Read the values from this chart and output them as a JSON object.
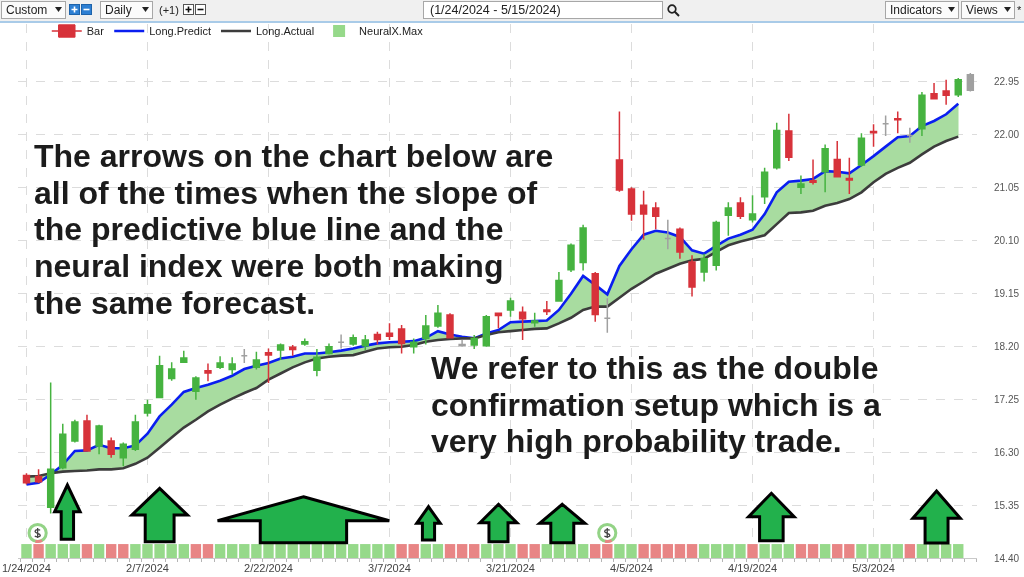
{
  "chart_data": {
    "type": "candlestick",
    "title": "(1/24/2024 - 5/15/2024)",
    "annotations": [
      "Custom",
      "Daily",
      "(+1)",
      "Indicators",
      "Views",
      "*",
      "The arrows on the chart below are all of the times when the slope of the predictive blue line and the neural index were both making the same forecast.",
      "We refer to this as the double confirmation setup which is a very high probability trade."
    ],
    "categories": [
      "1/24/2024",
      null,
      null,
      null,
      null,
      null,
      null,
      null,
      null,
      null,
      "2/7/2024",
      null,
      null,
      null,
      null,
      null,
      null,
      null,
      null,
      null,
      "2/22/2024",
      null,
      null,
      null,
      null,
      null,
      null,
      null,
      null,
      null,
      "3/7/2024",
      null,
      null,
      null,
      null,
      null,
      null,
      null,
      null,
      null,
      "3/21/2024",
      null,
      null,
      null,
      null,
      null,
      null,
      null,
      null,
      null,
      "4/5/2024",
      null,
      null,
      null,
      null,
      null,
      null,
      null,
      null,
      null,
      "4/19/2024",
      null,
      null,
      null,
      null,
      null,
      null,
      null,
      null,
      null,
      "5/3/2024",
      null,
      null,
      null,
      null,
      null,
      null,
      null,
      null
    ],
    "series": [
      {
        "name": "Bar",
        "ohlc": [
          [
            15.88,
            15.92,
            15.72,
            15.75
          ],
          [
            15.86,
            15.99,
            15.74,
            15.77
          ],
          [
            15.31,
            17.55,
            15.2,
            15.99
          ],
          [
            16.02,
            16.81,
            15.99,
            16.62
          ],
          [
            16.5,
            16.88,
            16.47,
            16.84
          ],
          [
            16.86,
            16.97,
            16.31,
            16.32
          ],
          [
            16.41,
            16.79,
            16.26,
            16.77
          ],
          [
            16.5,
            16.56,
            16.2,
            16.26
          ],
          [
            16.2,
            16.47,
            16.05,
            16.44
          ],
          [
            16.35,
            16.97,
            16.32,
            16.84
          ],
          [
            17.0,
            17.24,
            16.94,
            17.15
          ],
          [
            17.28,
            18.03,
            17.27,
            17.85
          ],
          [
            17.62,
            17.91,
            17.58,
            17.79
          ],
          [
            17.91,
            18.12,
            17.9,
            17.99
          ],
          [
            17.39,
            17.66,
            17.24,
            17.63
          ],
          [
            17.76,
            17.89,
            17.57,
            17.72
          ],
          [
            17.82,
            18.02,
            17.79,
            17.9
          ],
          [
            17.78,
            18.0,
            17.69,
            17.88
          ],
          [
            18.03,
            18.15,
            17.9,
            18.03
          ],
          [
            17.82,
            18.1,
            17.78,
            17.95
          ],
          [
            18.08,
            18.16,
            17.54,
            18.04
          ],
          [
            18.13,
            18.25,
            17.95,
            18.22
          ],
          [
            18.18,
            18.22,
            18.03,
            18.14
          ],
          [
            18.24,
            18.34,
            18.21,
            18.28
          ],
          [
            17.77,
            18.15,
            17.66,
            18.0
          ],
          [
            18.07,
            18.25,
            18.05,
            18.19
          ],
          [
            18.27,
            18.41,
            18.16,
            18.27
          ],
          [
            18.24,
            18.41,
            18.21,
            18.35
          ],
          [
            18.21,
            18.4,
            18.13,
            18.31
          ],
          [
            18.41,
            18.46,
            18.23,
            18.32
          ],
          [
            18.43,
            18.61,
            18.31,
            18.38
          ],
          [
            18.51,
            18.58,
            18.07,
            18.25
          ],
          [
            18.19,
            18.34,
            18.07,
            18.27
          ],
          [
            18.34,
            18.76,
            18.23,
            18.56
          ],
          [
            18.56,
            18.94,
            18.53,
            18.79
          ],
          [
            18.76,
            18.79,
            18.34,
            18.35
          ],
          [
            18.21,
            18.31,
            18.19,
            18.23
          ],
          [
            18.22,
            18.4,
            18.15,
            18.34
          ],
          [
            18.21,
            18.76,
            18.19,
            18.73
          ],
          [
            18.79,
            18.8,
            18.52,
            18.75
          ],
          [
            18.85,
            19.07,
            18.73,
            19.01
          ],
          [
            18.81,
            18.91,
            18.31,
            18.69
          ],
          [
            18.62,
            18.8,
            18.55,
            18.65
          ],
          [
            18.85,
            19.01,
            18.76,
            18.82
          ],
          [
            19.01,
            19.53,
            19.0,
            19.38
          ],
          [
            19.57,
            20.04,
            19.53,
            20.01
          ],
          [
            19.7,
            20.38,
            19.56,
            20.32
          ],
          [
            19.5,
            19.53,
            18.64,
            18.77
          ],
          [
            18.7,
            19.06,
            18.44,
            18.7
          ],
          [
            21.54,
            22.41,
            20.97,
            21.0
          ],
          [
            21.02,
            21.05,
            20.45,
            20.57
          ],
          [
            20.73,
            20.99,
            20.11,
            20.57
          ],
          [
            20.68,
            20.78,
            20.3,
            20.53
          ],
          [
            20.13,
            20.47,
            19.94,
            20.13
          ],
          [
            20.3,
            20.33,
            19.77,
            19.89
          ],
          [
            19.71,
            19.83,
            19.09,
            19.26
          ],
          [
            19.53,
            19.86,
            19.36,
            19.77
          ],
          [
            19.65,
            20.45,
            19.56,
            20.42
          ],
          [
            20.55,
            20.78,
            20.18,
            20.68
          ],
          [
            20.77,
            20.87,
            20.48,
            20.53
          ],
          [
            20.47,
            20.91,
            20.42,
            20.57
          ],
          [
            20.88,
            21.4,
            20.75,
            21.32
          ],
          [
            21.4,
            22.21,
            21.37,
            22.07
          ],
          [
            22.06,
            22.37,
            21.52,
            21.59
          ],
          [
            21.05,
            21.26,
            20.93,
            21.11
          ],
          [
            21.17,
            21.55,
            21.1,
            21.14
          ],
          [
            21.33,
            21.82,
            20.96,
            21.74
          ],
          [
            21.55,
            21.88,
            21.23,
            21.24
          ],
          [
            21.21,
            21.58,
            20.93,
            21.18
          ],
          [
            21.45,
            22.02,
            21.42,
            21.93
          ],
          [
            22.05,
            22.18,
            21.78,
            22.03
          ],
          [
            22.19,
            22.34,
            21.97,
            22.19
          ],
          [
            22.28,
            22.41,
            22.02,
            22.26
          ],
          [
            21.98,
            22.12,
            21.85,
            21.98
          ],
          [
            22.1,
            22.76,
            21.97,
            22.7
          ],
          [
            22.73,
            22.92,
            22.63,
            22.64
          ],
          [
            22.78,
            22.98,
            22.53,
            22.7
          ],
          [
            22.71,
            23.01,
            22.67,
            22.98
          ],
          [
            22.79,
            23.1,
            22.77,
            23.07
          ]
        ],
        "colors": [
          "#d7323a",
          "#d7323a",
          "#46b340",
          "#46b340",
          "#46b340",
          "#d7323a",
          "#46b340",
          "#d7323a",
          "#46b340",
          "#46b340",
          "#46b340",
          "#46b340",
          "#46b340",
          "#46b340",
          "#46b340",
          "#d7323a",
          "#46b340",
          "#46b340",
          "#a0a0a0",
          "#46b340",
          "#d7323a",
          "#46b340",
          "#d7323a",
          "#46b340",
          "#46b340",
          "#46b340",
          "#a0a0a0",
          "#46b340",
          "#46b340",
          "#d7323a",
          "#d7323a",
          "#d7323a",
          "#46b340",
          "#46b340",
          "#46b340",
          "#d7323a",
          "#a0a0a0",
          "#46b340",
          "#46b340",
          "#d7323a",
          "#46b340",
          "#d7323a",
          "#46b340",
          "#d7323a",
          "#46b340",
          "#46b340",
          "#46b340",
          "#d7323a",
          "#a0a0a0",
          "#d7323a",
          "#d7323a",
          "#d7323a",
          "#d7323a",
          "#a0a0a0",
          "#d7323a",
          "#d7323a",
          "#46b340",
          "#46b340",
          "#46b340",
          "#d7323a",
          "#46b340",
          "#46b340",
          "#46b340",
          "#d7323a",
          "#46b340",
          "#d7323a",
          "#46b340",
          "#d7323a",
          "#d7323a",
          "#46b340",
          "#d7323a",
          "#a0a0a0",
          "#d7323a",
          "#a0a0a0",
          "#46b340",
          "#d7323a",
          "#d7323a",
          "#46b340",
          "#a0a0a0"
        ]
      },
      {
        "type": "line",
        "name": "Long.Predict",
        "color": "#0a1ef0",
        "values": [
          15.72,
          15.75,
          15.9,
          16.07,
          16.32,
          16.33,
          16.43,
          16.37,
          16.37,
          16.42,
          16.63,
          16.94,
          17.15,
          17.38,
          17.45,
          17.51,
          17.58,
          17.67,
          17.79,
          17.85,
          17.9,
          17.98,
          18.01,
          18.07,
          18.07,
          18.09,
          18.12,
          18.16,
          18.21,
          18.25,
          18.27,
          18.28,
          18.29,
          18.35,
          18.47,
          18.41,
          18.37,
          18.34,
          18.43,
          18.49,
          18.63,
          18.64,
          18.65,
          18.66,
          18.85,
          19.14,
          19.46,
          19.3,
          19.13,
          19.64,
          19.94,
          20.2,
          20.27,
          20.24,
          20.16,
          19.92,
          19.86,
          20.0,
          20.13,
          20.2,
          20.29,
          20.57,
          20.96,
          21.15,
          21.17,
          21.2,
          21.34,
          21.33,
          21.3,
          21.45,
          21.61,
          21.78,
          21.95,
          21.97,
          22.15,
          22.24,
          22.36,
          22.55,
          null
        ],
        "lower": [
          15.86,
          15.87,
          15.92,
          15.95,
          15.96,
          15.97,
          15.99,
          15.99,
          16.01,
          16.09,
          16.2,
          16.38,
          16.56,
          16.74,
          16.88,
          17.03,
          17.15,
          17.26,
          17.36,
          17.45,
          17.6,
          17.71,
          17.82,
          17.91,
          17.98,
          18.01,
          18.03,
          18.04,
          18.1,
          18.16,
          18.18,
          18.19,
          18.22,
          18.28,
          18.31,
          18.33,
          18.34,
          18.34,
          18.4,
          18.45,
          18.47,
          18.49,
          18.51,
          18.52,
          18.61,
          18.71,
          18.85,
          18.91,
          18.91,
          19.07,
          19.23,
          19.36,
          19.5,
          19.59,
          19.68,
          19.74,
          19.77,
          19.89,
          20.01,
          20.08,
          20.13,
          20.19,
          20.39,
          20.59,
          20.6,
          20.63,
          20.72,
          20.77,
          20.84,
          20.96,
          21.14,
          21.29,
          21.4,
          21.49,
          21.64,
          21.78,
          21.88,
          21.96,
          null
        ],
        "upper": [
          15.72,
          15.75,
          15.9,
          16.07,
          16.32,
          16.33,
          16.43,
          16.37,
          16.37,
          16.42,
          16.63,
          16.94,
          17.15,
          17.38,
          17.45,
          17.51,
          17.58,
          17.67,
          17.79,
          17.85,
          17.9,
          17.98,
          18.01,
          18.07,
          18.07,
          18.09,
          18.12,
          18.16,
          18.21,
          18.25,
          18.27,
          18.28,
          18.29,
          18.35,
          18.47,
          18.41,
          18.37,
          18.34,
          18.43,
          18.49,
          18.63,
          18.64,
          18.65,
          18.66,
          18.85,
          19.14,
          19.46,
          19.3,
          19.13,
          19.64,
          19.94,
          20.2,
          20.27,
          20.24,
          20.16,
          19.92,
          19.86,
          20.0,
          20.13,
          20.2,
          20.29,
          20.57,
          20.96,
          21.15,
          21.17,
          21.2,
          21.34,
          21.33,
          21.3,
          21.45,
          21.61,
          21.78,
          21.95,
          21.97,
          22.15,
          22.24,
          22.36,
          22.55,
          null
        ]
      },
      {
        "type": "line",
        "name": "Long.Actual",
        "color": "#3c3c3c",
        "values": [
          15.86,
          15.87,
          15.92,
          15.95,
          15.96,
          15.97,
          15.99,
          15.99,
          16.01,
          16.09,
          16.2,
          16.38,
          16.56,
          16.74,
          16.88,
          17.03,
          17.15,
          17.26,
          17.36,
          17.45,
          17.6,
          17.71,
          17.82,
          17.91,
          17.98,
          18.01,
          18.03,
          18.04,
          18.1,
          18.16,
          18.18,
          18.19,
          18.22,
          18.28,
          18.31,
          18.33,
          18.34,
          18.34,
          18.4,
          18.45,
          18.47,
          18.49,
          18.51,
          18.52,
          18.61,
          18.71,
          18.85,
          18.91,
          18.91,
          19.07,
          19.23,
          19.36,
          19.5,
          19.59,
          19.68,
          19.74,
          19.77,
          19.89,
          20.01,
          20.08,
          20.13,
          20.19,
          20.39,
          20.59,
          20.6,
          20.63,
          20.72,
          20.77,
          20.84,
          20.96,
          21.14,
          21.29,
          21.4,
          21.49,
          21.64,
          21.78,
          21.88,
          21.96,
          null
        ]
      },
      {
        "type": "bar",
        "name": "NeuralX.Max",
        "values": [
          0.25,
          0.25,
          0.25,
          0.25,
          0.25,
          0.25,
          0.25,
          0.25,
          0.25,
          0.25,
          0.25,
          0.25,
          0.25,
          0.25,
          0.25,
          0.25,
          0.25,
          0.25,
          0.25,
          0.25,
          0.25,
          0.25,
          0.25,
          0.25,
          0.25,
          0.25,
          0.25,
          0.25,
          0.25,
          0.25,
          0.25,
          0.25,
          0.25,
          0.25,
          0.25,
          0.25,
          0.25,
          0.25,
          0.25,
          0.25,
          0.25,
          0.25,
          0.25,
          0.25,
          0.25,
          0.25,
          0.25,
          0.25,
          0.25,
          0.25,
          0.25,
          0.25,
          0.25,
          0.25,
          0.25,
          0.25,
          0.25,
          0.25,
          0.25,
          0.25,
          0.25,
          0.25,
          0.25,
          0.25,
          0.25,
          0.25,
          0.25,
          0.25,
          0.25,
          0.25,
          0.25,
          0.25,
          0.25,
          0.25,
          0.25,
          0.25,
          0.25,
          0.25,
          null
        ],
        "base": [
          14.4,
          14.4,
          14.4,
          14.4,
          14.4,
          14.4,
          14.4,
          14.4,
          14.4,
          14.4,
          14.4,
          14.4,
          14.4,
          14.4,
          14.4,
          14.4,
          14.4,
          14.4,
          14.4,
          14.4,
          14.4,
          14.4,
          14.4,
          14.4,
          14.4,
          14.4,
          14.4,
          14.4,
          14.4,
          14.4,
          14.4,
          14.4,
          14.4,
          14.4,
          14.4,
          14.4,
          14.4,
          14.4,
          14.4,
          14.4,
          14.4,
          14.4,
          14.4,
          14.4,
          14.4,
          14.4,
          14.4,
          14.4,
          14.4,
          14.4,
          14.4,
          14.4,
          14.4,
          14.4,
          14.4,
          14.4,
          14.4,
          14.4,
          14.4,
          14.4,
          14.4,
          14.4,
          14.4,
          14.4,
          14.4,
          14.4,
          14.4,
          14.4,
          14.4,
          14.4,
          14.4,
          14.4,
          14.4,
          14.4,
          14.4,
          14.4,
          14.4,
          14.4,
          null
        ],
        "colors": [
          "#96d98a",
          "#e88585",
          "#96d98a",
          "#96d98a",
          "#96d98a",
          "#e88585",
          "#96d98a",
          "#e88585",
          "#e88585",
          "#96d98a",
          "#96d98a",
          "#96d98a",
          "#96d98a",
          "#96d98a",
          "#e88585",
          "#e88585",
          "#96d98a",
          "#96d98a",
          "#96d98a",
          "#96d98a",
          "#96d98a",
          "#96d98a",
          "#96d98a",
          "#96d98a",
          "#96d98a",
          "#96d98a",
          "#96d98a",
          "#96d98a",
          "#96d98a",
          "#96d98a",
          "#96d98a",
          "#e88585",
          "#e88585",
          "#96d98a",
          "#96d98a",
          "#e88585",
          "#e88585",
          "#e88585",
          "#96d98a",
          "#96d98a",
          "#96d98a",
          "#e88585",
          "#e88585",
          "#96d98a",
          "#96d98a",
          "#96d98a",
          "#96d98a",
          "#e88585",
          "#e88585",
          "#96d98a",
          "#96d98a",
          "#e88585",
          "#e88585",
          "#e88585",
          "#e88585",
          "#e88585",
          "#96d98a",
          "#96d98a",
          "#96d98a",
          "#96d98a",
          "#e88585",
          "#96d98a",
          "#96d98a",
          "#96d98a",
          "#e88585",
          "#e88585",
          "#96d98a",
          "#e88585",
          "#e88585",
          "#96d98a",
          "#96d98a",
          "#96d98a",
          "#96d98a",
          "#e88585",
          "#96d98a",
          "#96d98a",
          "#96d98a",
          "#96d98a",
          null
        ]
      }
    ],
    "ylim": [
      14.4,
      23.98
    ],
    "yticks": [
      {
        "value": 14.4,
        "label": "14.40"
      },
      {
        "value": 15.35,
        "label": "15.35"
      },
      {
        "value": 16.3,
        "label": "16.30"
      },
      {
        "value": 17.25,
        "label": "17.25"
      },
      {
        "value": 18.2,
        "label": "18.20"
      },
      {
        "value": 19.15,
        "label": "19.15"
      },
      {
        "value": 20.1,
        "label": "20.10"
      },
      {
        "value": 21.05,
        "label": "21.05"
      },
      {
        "value": 22,
        "label": "22.00"
      },
      {
        "value": 22.95,
        "label": "22.95"
      }
    ],
    "grid": true,
    "legend": "top left"
  }
}
